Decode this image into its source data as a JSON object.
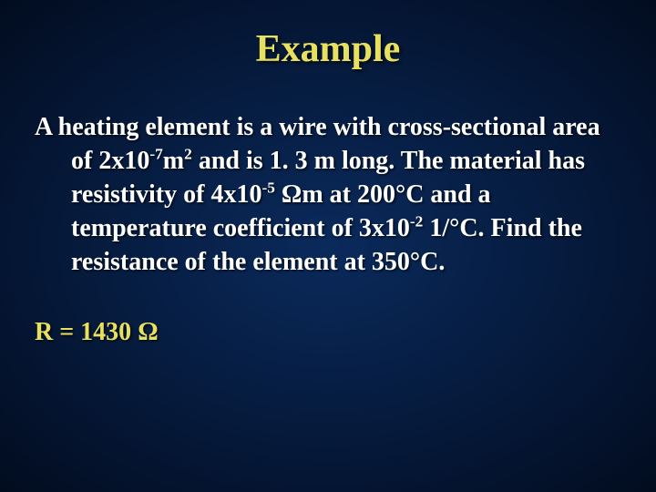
{
  "slide": {
    "title": "Example",
    "background_gradient": {
      "inner": "#0a2a5c",
      "mid": "#051838",
      "outer": "#020c1f"
    },
    "title_color": "#e8e060",
    "body_color": "#ffffff",
    "answer_color": "#e8e060",
    "title_fontsize": 42,
    "body_fontsize": 28,
    "font_family": "Times New Roman"
  },
  "problem": {
    "lead": "A heating element is a wire with cross-",
    "p1a": "sectional area of 2x10",
    "exp1": "-7",
    "unit1a": "m",
    "exp_unit1": "2",
    "p1b": " and is 1. 3 m long. The material has resistivity of 4x10",
    "exp2": "-5",
    "space1": " ",
    "omega1": "Ω",
    "p1c": "m at 200°C and a temperature coefficient of 3x10",
    "exp3": "-2",
    "p1d": " 1/°C.  Find the resistance of the element at 350°C."
  },
  "answer": {
    "label": "R = 1430 ",
    "omega": "Ω"
  }
}
